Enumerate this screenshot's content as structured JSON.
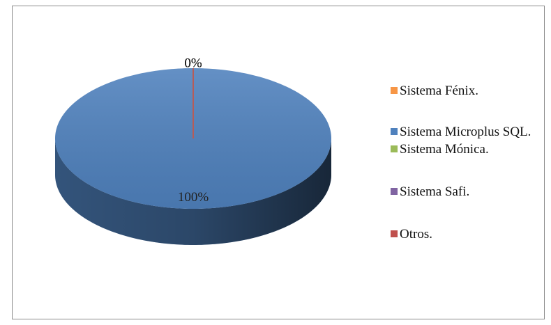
{
  "chart_data": {
    "type": "pie",
    "categories": [
      "Sistema Fénix.",
      "Sistema Microplus SQL.",
      "Sistema Mónica.",
      "Sistema Safi.",
      "Otros."
    ],
    "values": [
      0,
      100,
      0,
      0,
      0
    ],
    "value_labels": [
      "0%",
      "100%",
      "0%",
      "0%",
      "0%"
    ],
    "colors": [
      "#f79646",
      "#4f81bd",
      "#9bbb59",
      "#8064a2",
      "#c0504d"
    ],
    "legend": "right"
  }
}
